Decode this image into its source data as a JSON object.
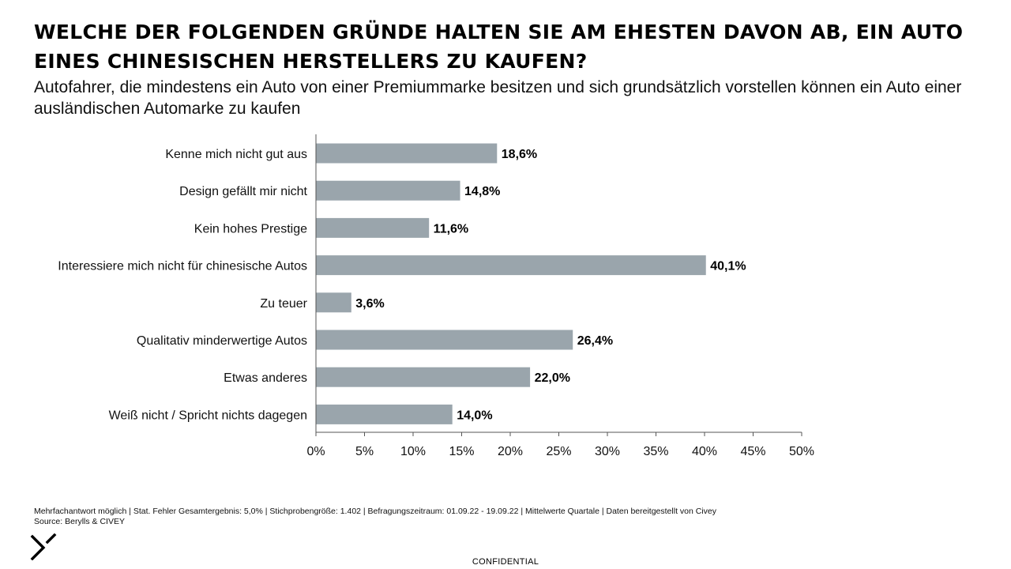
{
  "title": "Welche der folgenden Gründe halten Sie am ehesten davon ab, ein Auto eines chinesischen Herstellers zu kaufen?",
  "subtitle": "Autofahrer, die mindestens ein Auto von einer Premiummarke besitzen und sich grundsätzlich vorstellen können ein Auto einer ausländischen Automarke zu kaufen",
  "chart_data": {
    "type": "bar",
    "orientation": "horizontal",
    "categories": [
      "Kenne mich nicht gut aus",
      "Design gefällt mir nicht",
      "Kein hohes Prestige",
      "Interessiere mich nicht für chinesische Autos",
      "Zu teuer",
      "Qualitativ minderwertige Autos",
      "Etwas anderes",
      "Weiß nicht / Spricht nichts dagegen"
    ],
    "values": [
      18.6,
      14.8,
      11.6,
      40.1,
      3.6,
      26.4,
      22.0,
      14.0
    ],
    "value_labels": [
      "18,6%",
      "14,8%",
      "11,6%",
      "40,1%",
      "3,6%",
      "26,4%",
      "22,0%",
      "14,0%"
    ],
    "xlim": [
      0,
      50
    ],
    "x_ticks": [
      0,
      5,
      10,
      15,
      20,
      25,
      30,
      35,
      40,
      45,
      50
    ],
    "x_tick_labels": [
      "0%",
      "5%",
      "10%",
      "15%",
      "20%",
      "25%",
      "30%",
      "35%",
      "40%",
      "45%",
      "50%"
    ],
    "bar_color": "#9aa5ac",
    "grid": false
  },
  "footnote": {
    "line1": "Mehrfachantwort möglich | Stat. Fehler Gesamtergebnis: 5,0% | Stichprobengröße: 1.402 | Befragungszeitraum: 01.09.22 - 19.09.22 | Mittelwerte Quartale | Daten bereitgestellt von Civey",
    "line2": "Source: Berylls & CIVEY"
  },
  "logo_icon": "berylls-logo-icon",
  "confidential": "CONFIDENTIAL"
}
